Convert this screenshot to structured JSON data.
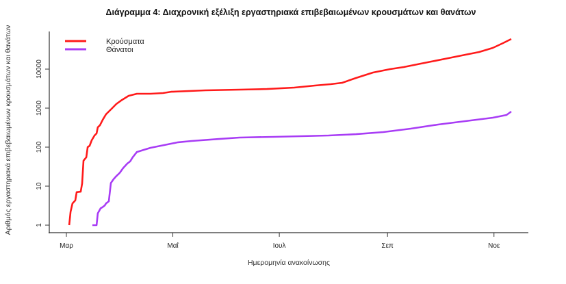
{
  "chart_data": {
    "type": "line",
    "title": "Διάγραμμα 4: Διαχρονική εξέλιξη εργαστηριακά επιβεβαιωμένων κρουσμάτων και θανάτων",
    "xlabel": "Ημερομηνία ανακοίνωσης",
    "ylabel": "Αριθμός εργαστηριακά επιβεβαιωμένων κρουσμάτων και θανάτων",
    "x_units": "days since 1 March",
    "yscale": "log",
    "ylim": [
      0.8,
      80000
    ],
    "xlim": [
      -10,
      265
    ],
    "grid": false,
    "legend_position": "top-left",
    "yticks": [
      {
        "value": 1,
        "label": "1"
      },
      {
        "value": 10,
        "label": "10"
      },
      {
        "value": 100,
        "label": "100"
      },
      {
        "value": 1000,
        "label": "1000"
      },
      {
        "value": 10000,
        "label": "10000"
      }
    ],
    "xticks": [
      {
        "value": 0,
        "label": "Μαρ"
      },
      {
        "value": 61,
        "label": "Μαΐ"
      },
      {
        "value": 122,
        "label": "Ιουλ"
      },
      {
        "value": 184,
        "label": "Σεπ"
      },
      {
        "value": 245,
        "label": "Νοε"
      }
    ],
    "series": [
      {
        "name": "Κρούσματα",
        "color": "#ff1a1a",
        "x": [
          1.6,
          2.4,
          3.5,
          5.1,
          5.9,
          8.2,
          9,
          9.8,
          11.4,
          12.2,
          13.3,
          14.5,
          16.1,
          17.3,
          18,
          19.2,
          20.8,
          22.7,
          23.9,
          25.9,
          28.6,
          31.8,
          35.7,
          40.4,
          48.2,
          55.3,
          60,
          79.6,
          99.2,
          114.9,
          130.6,
          142.4,
          151.4,
          158,
          165.9,
          175.7,
          185.5,
          193.3,
          205,
          216.9,
          228.6,
          236.5,
          244.3,
          250.2,
          254.9
        ],
        "y": [
          1,
          2.2,
          3.6,
          4.3,
          7,
          7.2,
          11.7,
          45,
          55,
          100,
          108,
          150,
          199,
          224,
          323,
          363,
          500,
          695,
          785,
          960,
          1275,
          1620,
          2070,
          2335,
          2335,
          2430,
          2630,
          2860,
          2980,
          3090,
          3360,
          3800,
          4110,
          4460,
          5920,
          8170,
          10000,
          11300,
          14400,
          18300,
          23400,
          27500,
          35000,
          46400,
          59200
        ]
      },
      {
        "name": "Θάνατοι",
        "color": "#a83cf5",
        "x": [
          14.9,
          17.3,
          18,
          19.6,
          20.8,
          22,
          22.7,
          24.3,
          24.7,
          25.5,
          27,
          28.6,
          30.6,
          32.5,
          34.9,
          36.5,
          38,
          40.4,
          44.3,
          48.2,
          56,
          64,
          71.8,
          87.5,
          99.2,
          118.8,
          134.5,
          150.2,
          165.9,
          181.6,
          197.3,
          213,
          228.6,
          244.3,
          252.2,
          254.9
        ],
        "y": [
          1,
          1,
          2,
          2.7,
          2.9,
          3.2,
          3.6,
          4.1,
          5.9,
          12,
          15,
          18,
          22,
          29,
          38,
          43,
          55,
          75,
          85,
          96,
          113,
          133,
          144,
          162,
          176,
          183,
          191,
          199,
          215,
          243,
          298,
          379,
          465,
          568,
          668,
          817
        ]
      }
    ]
  }
}
